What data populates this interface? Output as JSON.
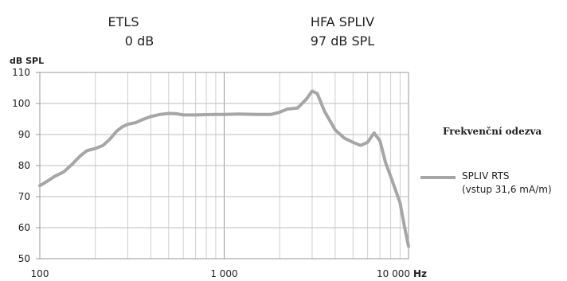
{
  "header": {
    "left_title": "ETLS",
    "left_value": "0 dB",
    "right_title": "HFA SPLIV",
    "right_value": "97 dB SPL"
  },
  "side_title": "Frekvenční odezva",
  "chart_data": {
    "type": "line",
    "title": "Frekvenční odezva",
    "ylabel": "dB SPL",
    "xlabel": "Hz",
    "x_scale": "log",
    "xlim": [
      100,
      10000
    ],
    "ylim": [
      50,
      110
    ],
    "y_ticks": [
      "50",
      "60",
      "70",
      "80",
      "90",
      "100",
      "110"
    ],
    "x_ticks": [
      "100",
      "1 000",
      "10 000"
    ],
    "grid": true,
    "legend_position": "right",
    "series": [
      {
        "name": "SPLIV RTS",
        "name_line2": "(vstup 31,6 mA/m)",
        "color": "#a6a6a6",
        "x": [
          100,
          110,
          120,
          135,
          150,
          165,
          180,
          200,
          220,
          240,
          260,
          280,
          300,
          330,
          360,
          400,
          450,
          500,
          550,
          600,
          700,
          800,
          900,
          1000,
          1200,
          1500,
          1800,
          2000,
          2200,
          2500,
          2800,
          3000,
          3200,
          3500,
          4000,
          4500,
          5000,
          5500,
          6000,
          6500,
          7000,
          7500,
          8000,
          9000,
          9500,
          10000
        ],
        "y": [
          73.5,
          75,
          76.5,
          78,
          80.5,
          83,
          84.8,
          85.5,
          86.5,
          88.5,
          91,
          92.5,
          93.3,
          93.8,
          94.8,
          95.8,
          96.5,
          96.8,
          96.7,
          96.3,
          96.3,
          96.4,
          96.5,
          96.5,
          96.6,
          96.5,
          96.5,
          97.2,
          98.2,
          98.5,
          101.5,
          104,
          103.2,
          97.5,
          91.5,
          88.8,
          87.5,
          86.5,
          87.5,
          90.5,
          88,
          81,
          76.5,
          68,
          60.5,
          54
        ]
      }
    ]
  }
}
